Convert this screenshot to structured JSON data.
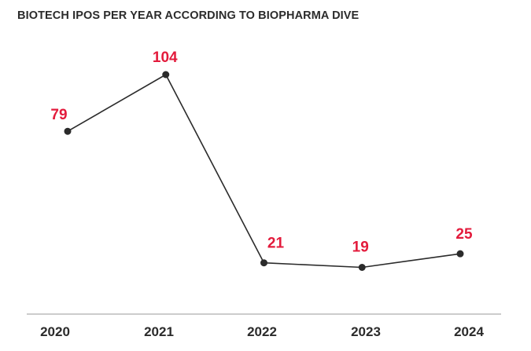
{
  "colors": {
    "line": "#2b2b2b",
    "point": "#2b2b2b",
    "label": "#e31b3c",
    "axis": "#9a9a9a",
    "text": "#2b2b2b"
  },
  "chart_data": {
    "type": "line",
    "title": "BIOTECH IPOS PER YEAR ACCORDING TO BIOPHARMA DIVE",
    "xlabel": "",
    "ylabel": "",
    "categories": [
      "2020",
      "2021",
      "2022",
      "2023",
      "2024"
    ],
    "values": [
      79,
      104,
      21,
      19,
      25
    ],
    "data_labels": [
      "79",
      "104",
      "21",
      "19",
      "25"
    ],
    "grid": false,
    "legend": "none"
  }
}
